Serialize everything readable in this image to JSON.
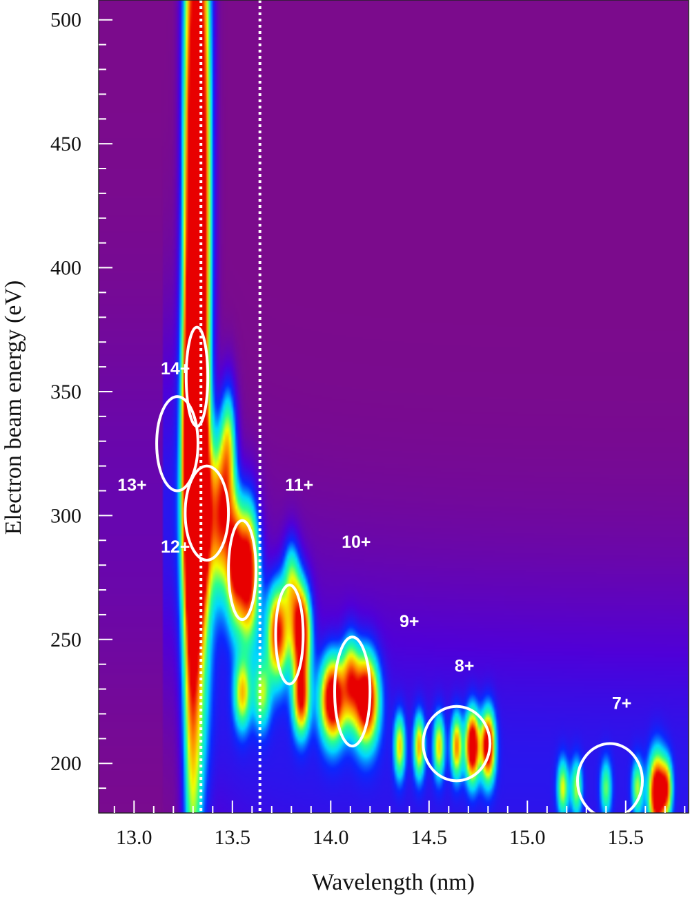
{
  "chart_data": {
    "type": "heatmap",
    "xlabel": "Wavelength (nm)",
    "ylabel": "Electron beam energy (eV)",
    "xlim": [
      12.82,
      15.82
    ],
    "ylim": [
      180,
      508
    ],
    "x_ticks": [
      13.0,
      13.5,
      14.0,
      14.5,
      15.0,
      15.5
    ],
    "x_tick_labels": [
      "13.0",
      "13.5",
      "14.0",
      "14.5",
      "15.0",
      "15.5"
    ],
    "y_ticks": [
      200,
      250,
      300,
      350,
      400,
      450,
      500
    ],
    "y_tick_labels": [
      "200",
      "250",
      "300",
      "350",
      "400",
      "450",
      "500"
    ],
    "colormap": [
      "#7b0b8c",
      "#5000d8",
      "#0a28ff",
      "#00d8ff",
      "#28ff90",
      "#f2ff00",
      "#ff8800",
      "#e80000"
    ],
    "reference_lines_x": [
      13.34,
      13.64
    ],
    "peaks": [
      {
        "x": 13.3,
        "y": 360,
        "wx": 0.035,
        "wy": 160,
        "v": 0.85
      },
      {
        "x": 13.31,
        "y": 330,
        "wx": 0.03,
        "wy": 30,
        "v": 1.0
      },
      {
        "x": 13.33,
        "y": 300,
        "wx": 0.04,
        "wy": 25,
        "v": 0.75
      },
      {
        "x": 13.34,
        "y": 450,
        "wx": 0.03,
        "wy": 120,
        "v": 0.55
      },
      {
        "x": 13.37,
        "y": 420,
        "wx": 0.03,
        "wy": 110,
        "v": 0.45
      },
      {
        "x": 13.28,
        "y": 400,
        "wx": 0.03,
        "wy": 150,
        "v": 0.4
      },
      {
        "x": 13.44,
        "y": 300,
        "wx": 0.04,
        "wy": 22,
        "v": 0.8
      },
      {
        "x": 13.48,
        "y": 330,
        "wx": 0.03,
        "wy": 18,
        "v": 0.55
      },
      {
        "x": 13.58,
        "y": 278,
        "wx": 0.04,
        "wy": 20,
        "v": 1.0
      },
      {
        "x": 13.51,
        "y": 282,
        "wx": 0.03,
        "wy": 18,
        "v": 0.7
      },
      {
        "x": 13.73,
        "y": 253,
        "wx": 0.04,
        "wy": 14,
        "v": 0.85
      },
      {
        "x": 13.85,
        "y": 253,
        "wx": 0.035,
        "wy": 14,
        "v": 1.0
      },
      {
        "x": 13.8,
        "y": 275,
        "wx": 0.03,
        "wy": 12,
        "v": 0.45
      },
      {
        "x": 14.01,
        "y": 226,
        "wx": 0.045,
        "wy": 12,
        "v": 1.0
      },
      {
        "x": 14.18,
        "y": 226,
        "wx": 0.045,
        "wy": 13,
        "v": 1.0
      },
      {
        "x": 14.1,
        "y": 235,
        "wx": 0.03,
        "wy": 12,
        "v": 0.55
      },
      {
        "x": 13.55,
        "y": 228,
        "wx": 0.03,
        "wy": 10,
        "v": 0.55
      },
      {
        "x": 13.65,
        "y": 228,
        "wx": 0.03,
        "wy": 10,
        "v": 0.45
      },
      {
        "x": 13.85,
        "y": 225,
        "wx": 0.03,
        "wy": 10,
        "v": 0.7
      },
      {
        "x": 14.35,
        "y": 207,
        "wx": 0.02,
        "wy": 9,
        "v": 0.55
      },
      {
        "x": 14.45,
        "y": 207,
        "wx": 0.02,
        "wy": 9,
        "v": 0.6
      },
      {
        "x": 14.55,
        "y": 207,
        "wx": 0.02,
        "wy": 9,
        "v": 0.55
      },
      {
        "x": 14.64,
        "y": 207,
        "wx": 0.02,
        "wy": 9,
        "v": 0.65
      },
      {
        "x": 14.72,
        "y": 207,
        "wx": 0.025,
        "wy": 10,
        "v": 1.0
      },
      {
        "x": 14.8,
        "y": 207,
        "wx": 0.025,
        "wy": 10,
        "v": 0.95
      },
      {
        "x": 15.18,
        "y": 190,
        "wx": 0.02,
        "wy": 8,
        "v": 0.5
      },
      {
        "x": 15.25,
        "y": 190,
        "wx": 0.02,
        "wy": 8,
        "v": 0.45
      },
      {
        "x": 15.4,
        "y": 190,
        "wx": 0.02,
        "wy": 8,
        "v": 0.4
      },
      {
        "x": 15.56,
        "y": 190,
        "wx": 0.02,
        "wy": 8,
        "v": 0.45
      },
      {
        "x": 15.66,
        "y": 188,
        "wx": 0.03,
        "wy": 11,
        "v": 1.0
      },
      {
        "x": 15.71,
        "y": 190,
        "wx": 0.02,
        "wy": 8,
        "v": 0.55
      }
    ],
    "annotations": [
      {
        "label": "14+",
        "label_x": 13.21,
        "label_y": 357,
        "ellipse": {
          "cx": 13.32,
          "cy": 356,
          "rx": 0.055,
          "ry": 20
        }
      },
      {
        "label": "13+",
        "label_x": 12.99,
        "label_y": 310,
        "ellipse": {
          "cx": 13.22,
          "cy": 329,
          "rx": 0.105,
          "ry": 19
        }
      },
      {
        "label": "12+",
        "label_x": 13.21,
        "label_y": 285,
        "ellipse": {
          "cx": 13.37,
          "cy": 301,
          "rx": 0.11,
          "ry": 19
        }
      },
      {
        "label": "11+",
        "label_x": 13.84,
        "label_y": 310,
        "ellipse": {
          "cx": 13.55,
          "cy": 278,
          "rx": 0.07,
          "ry": 20
        }
      },
      {
        "label": "10+",
        "label_x": 14.13,
        "label_y": 287,
        "ellipse": {
          "cx": 13.79,
          "cy": 252,
          "rx": 0.07,
          "ry": 20
        }
      },
      {
        "label": "9+",
        "label_x": 14.4,
        "label_y": 255,
        "ellipse": {
          "cx": 14.11,
          "cy": 229,
          "rx": 0.09,
          "ry": 22
        }
      },
      {
        "label": "8+",
        "label_x": 14.68,
        "label_y": 237,
        "ellipse": {
          "cx": 14.64,
          "cy": 208,
          "rx": 0.17,
          "ry": 15
        }
      },
      {
        "label": "7+",
        "label_x": 15.48,
        "label_y": 222,
        "ellipse": {
          "cx": 15.42,
          "cy": 193,
          "rx": 0.165,
          "ry": 15
        }
      }
    ]
  }
}
